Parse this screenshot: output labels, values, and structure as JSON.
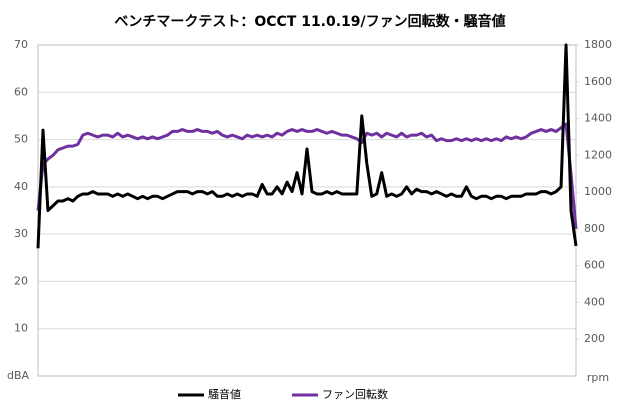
{
  "chart_data": {
    "type": "line",
    "title": "ベンチマークテスト：OCCT 11.0.19/ファン回転数・騒音値",
    "y_label": "dBA",
    "y2_label": "rpm",
    "ylim": [
      0,
      70
    ],
    "yticks": [
      10,
      20,
      30,
      40,
      50,
      60,
      70
    ],
    "y2lim": [
      0,
      1800
    ],
    "y2ticks": [
      200,
      400,
      600,
      800,
      1000,
      1200,
      1400,
      1600,
      1800
    ],
    "grid": true,
    "legend": "bottom",
    "series": [
      {
        "name": "騒音値",
        "color": "#000000",
        "axis": "y",
        "values": [
          27,
          52,
          35,
          36,
          37,
          37,
          37.5,
          37,
          38,
          38.5,
          38.5,
          39,
          38.5,
          38.5,
          38.5,
          38,
          38.5,
          38,
          38.5,
          38,
          37.5,
          38,
          37.5,
          38,
          38,
          37.5,
          38,
          38.5,
          39,
          39,
          39,
          38.5,
          39,
          39,
          38.5,
          39,
          38,
          38,
          38.5,
          38,
          38.5,
          38,
          38.5,
          38.5,
          38,
          40.5,
          38.5,
          38.5,
          40,
          38.5,
          41,
          39,
          43,
          38.5,
          48,
          39,
          38.5,
          38.5,
          39,
          38.5,
          39,
          38.5,
          38.5,
          38.5,
          38.5,
          55,
          45,
          38,
          38.5,
          43,
          38,
          38.5,
          38,
          38.5,
          40,
          38.5,
          39.5,
          39,
          39,
          38.5,
          39,
          38.5,
          38,
          38.5,
          38,
          38,
          40,
          38,
          37.5,
          38,
          38,
          37.5,
          38,
          38,
          37.5,
          38,
          38,
          38,
          38.5,
          38.5,
          38.5,
          39,
          39,
          38.5,
          39,
          40,
          70,
          35,
          27.5
        ]
      },
      {
        "name": "ファン回転数",
        "color": "#7030a0",
        "axis": "y2",
        "values": [
          900,
          1150,
          1180,
          1200,
          1230,
          1240,
          1250,
          1250,
          1260,
          1310,
          1320,
          1310,
          1300,
          1310,
          1310,
          1300,
          1320,
          1300,
          1310,
          1300,
          1290,
          1300,
          1290,
          1300,
          1290,
          1300,
          1310,
          1330,
          1330,
          1340,
          1330,
          1330,
          1340,
          1330,
          1330,
          1320,
          1330,
          1310,
          1300,
          1310,
          1300,
          1290,
          1310,
          1300,
          1310,
          1300,
          1310,
          1300,
          1320,
          1310,
          1330,
          1340,
          1330,
          1340,
          1330,
          1330,
          1340,
          1330,
          1320,
          1330,
          1320,
          1310,
          1310,
          1300,
          1290,
          1270,
          1320,
          1310,
          1320,
          1300,
          1320,
          1310,
          1300,
          1320,
          1300,
          1310,
          1310,
          1320,
          1300,
          1310,
          1280,
          1290,
          1280,
          1280,
          1290,
          1280,
          1290,
          1280,
          1290,
          1280,
          1290,
          1280,
          1290,
          1280,
          1300,
          1290,
          1300,
          1290,
          1300,
          1320,
          1330,
          1340,
          1330,
          1340,
          1330,
          1350,
          1370,
          1100,
          800
        ]
      }
    ]
  }
}
